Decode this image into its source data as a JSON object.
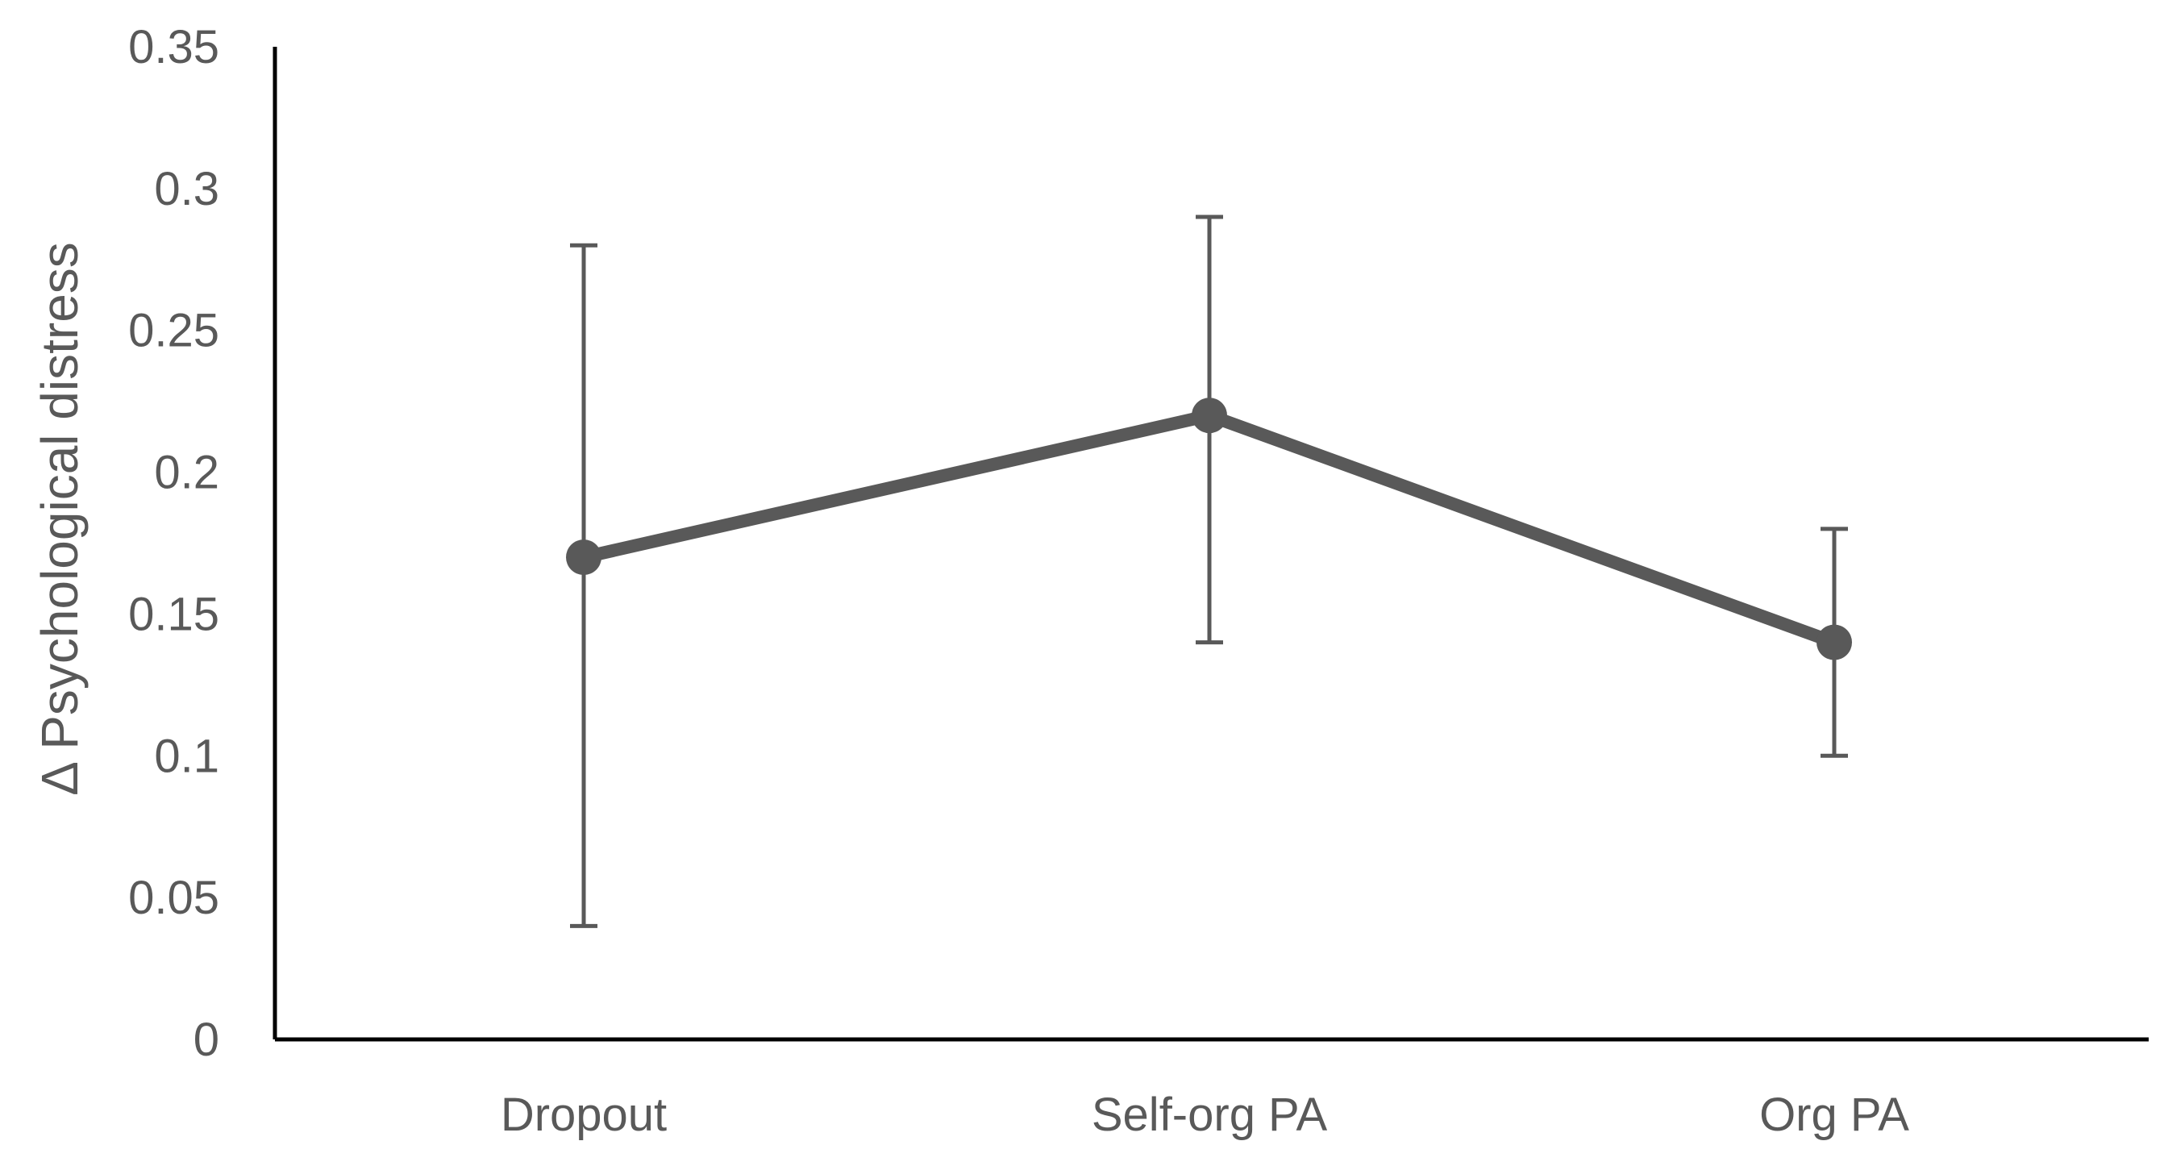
{
  "chart_data": {
    "type": "line",
    "title": "",
    "xlabel": "",
    "ylabel": "Δ  Psychological distress",
    "ylim": [
      0,
      0.35
    ],
    "yticks": [
      "0",
      "0.05",
      "0.1",
      "0.15",
      "0.2",
      "0.25",
      "0.3",
      "0.35"
    ],
    "grid": false,
    "legend": "none",
    "categories": [
      "Dropout",
      "Self-org PA",
      "Org PA"
    ],
    "series": [
      {
        "values": [
          0.17,
          0.22,
          0.14
        ],
        "error_low": [
          0.04,
          0.14,
          0.1
        ],
        "error_high": [
          0.28,
          0.29,
          0.18
        ],
        "color": "#595959"
      }
    ]
  }
}
